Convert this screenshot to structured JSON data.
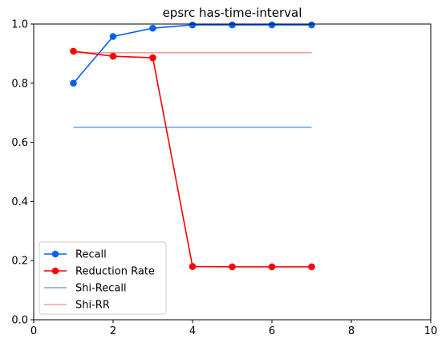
{
  "chart_data": {
    "type": "line",
    "title": "epsrc has-time-interval",
    "xlabel": "",
    "ylabel": "",
    "xlim": [
      0,
      10
    ],
    "ylim": [
      0,
      1.0
    ],
    "xticks": [
      0,
      2,
      4,
      6,
      8,
      10
    ],
    "xtick_labels": [
      "0",
      "2",
      "4",
      "6",
      "8",
      "10"
    ],
    "yticks": [
      0.0,
      0.2,
      0.4,
      0.6,
      0.8,
      1.0
    ],
    "ytick_labels": [
      "0.0",
      "0.2",
      "0.4",
      "0.6",
      "0.8",
      "1.0"
    ],
    "grid": false,
    "legend_position": "lower-left",
    "series": [
      {
        "name": "Recall",
        "color": "#0a60f0",
        "marker": "circle",
        "style": "solid",
        "x": [
          1,
          2,
          3,
          4,
          5,
          6,
          7
        ],
        "y": [
          0.8,
          0.958,
          0.986,
          0.997,
          0.997,
          0.997,
          0.997
        ]
      },
      {
        "name": "Reduction Rate",
        "color": "#ff0000",
        "marker": "circle",
        "style": "solid",
        "x": [
          1,
          2,
          3,
          4,
          5,
          6,
          7
        ],
        "y": [
          0.908,
          0.891,
          0.886,
          0.18,
          0.179,
          0.179,
          0.179
        ]
      },
      {
        "name": "Shi-Recall",
        "color": "#6fa3f5",
        "marker": "none",
        "style": "solid",
        "x": [
          1,
          7
        ],
        "y": [
          0.651,
          0.651
        ]
      },
      {
        "name": "Shi-RR",
        "color": "#f5a0a0",
        "marker": "none",
        "style": "solid",
        "x": [
          1,
          7
        ],
        "y": [
          0.903,
          0.903
        ]
      }
    ]
  }
}
